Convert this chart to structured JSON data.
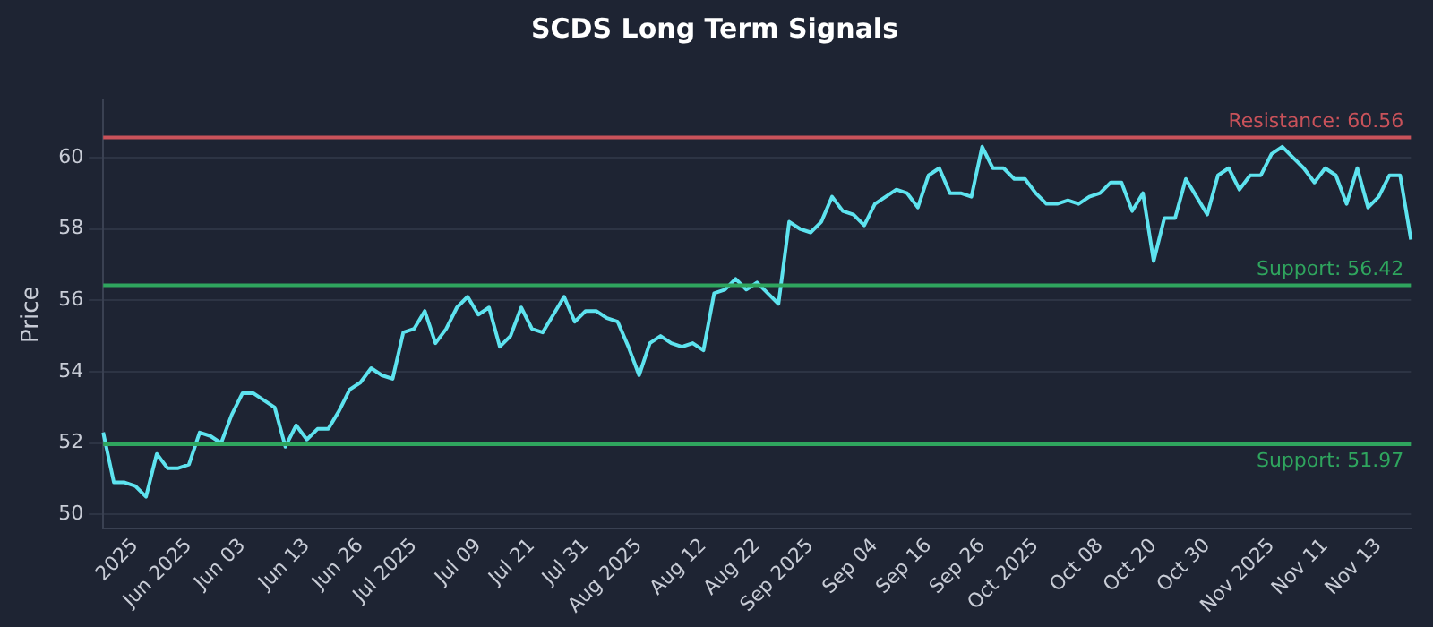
{
  "chart_data": {
    "type": "line",
    "title": "SCDS Long Term Signals",
    "ylabel": "Price",
    "categories": [
      null,
      null,
      null,
      "2025",
      null,
      null,
      null,
      null,
      "Jun 2025",
      null,
      null,
      null,
      null,
      "Jun 03",
      null,
      null,
      null,
      null,
      null,
      "Jun 13",
      null,
      null,
      null,
      null,
      "Jun 26",
      null,
      null,
      null,
      null,
      "Jul 2025",
      null,
      null,
      null,
      null,
      null,
      "Jul 09",
      null,
      null,
      null,
      null,
      "Jul 21",
      null,
      null,
      null,
      null,
      "Jul 31",
      null,
      null,
      null,
      null,
      "Aug 2025",
      null,
      null,
      null,
      null,
      null,
      "Aug 12",
      null,
      null,
      null,
      null,
      "Aug 22",
      null,
      null,
      null,
      null,
      "Sep 2025",
      null,
      null,
      null,
      null,
      null,
      "Sep 04",
      null,
      null,
      null,
      null,
      "Sep 16",
      null,
      null,
      null,
      null,
      "Sep 26",
      null,
      null,
      null,
      null,
      "Oct 2025",
      null,
      null,
      null,
      null,
      null,
      "Oct 08",
      null,
      null,
      null,
      null,
      "Oct 20",
      null,
      null,
      null,
      null,
      "Oct 30",
      null,
      null,
      null,
      null,
      null,
      "Nov 2025",
      null,
      null,
      null,
      null,
      "Nov 11",
      null,
      null,
      null,
      null,
      "Nov 13",
      null,
      null,
      null
    ],
    "series": [
      {
        "color": "#5ee3ef",
        "values": [
          52.3,
          50.9,
          50.9,
          50.8,
          50.5,
          51.7,
          51.3,
          51.3,
          51.4,
          52.3,
          52.2,
          52.0,
          52.8,
          53.4,
          53.4,
          53.2,
          53.0,
          51.9,
          52.5,
          52.1,
          52.4,
          52.4,
          52.9,
          53.5,
          53.7,
          54.1,
          53.9,
          53.8,
          55.1,
          55.2,
          55.7,
          54.8,
          55.2,
          55.8,
          56.1,
          55.6,
          55.8,
          54.7,
          55.0,
          55.8,
          55.2,
          55.1,
          55.6,
          56.1,
          55.4,
          55.7,
          55.7,
          55.5,
          55.4,
          54.7,
          53.9,
          54.8,
          55.0,
          54.8,
          54.7,
          54.8,
          54.6,
          56.2,
          56.3,
          56.6,
          56.3,
          56.5,
          56.2,
          55.9,
          58.2,
          58.0,
          57.9,
          58.2,
          58.9,
          58.5,
          58.4,
          58.1,
          58.7,
          58.9,
          59.1,
          59.0,
          58.6,
          59.5,
          59.7,
          59.0,
          59.0,
          58.9,
          60.3,
          59.7,
          59.7,
          59.4,
          59.4,
          59.0,
          58.7,
          58.7,
          58.8,
          58.7,
          58.9,
          59.0,
          59.3,
          59.3,
          58.5,
          59.0,
          57.1,
          58.3,
          58.3,
          59.4,
          58.9,
          58.4,
          59.5,
          59.7,
          59.1,
          59.5,
          59.5,
          60.1,
          60.3,
          60.0,
          59.7,
          59.3,
          59.7,
          59.5,
          58.7,
          59.7,
          58.6,
          58.9,
          59.5,
          59.5,
          57.7
        ]
      }
    ],
    "ylim": [
      49.6,
      61.6
    ],
    "yticks": [
      50,
      52,
      54,
      56,
      58,
      60
    ],
    "grid": "y",
    "marker": "none",
    "line_style": "solid",
    "legend": false,
    "ref_lines": [
      {
        "axis": "y",
        "value": 60.56,
        "label": "Resistance: 60.56",
        "color": "#c9525a"
      },
      {
        "axis": "y",
        "value": 56.42,
        "label": "Support: 56.42",
        "color": "#2fa55e"
      },
      {
        "axis": "y",
        "value": 51.97,
        "label": "Support: 51.97",
        "color": "#2fa55e"
      }
    ]
  }
}
